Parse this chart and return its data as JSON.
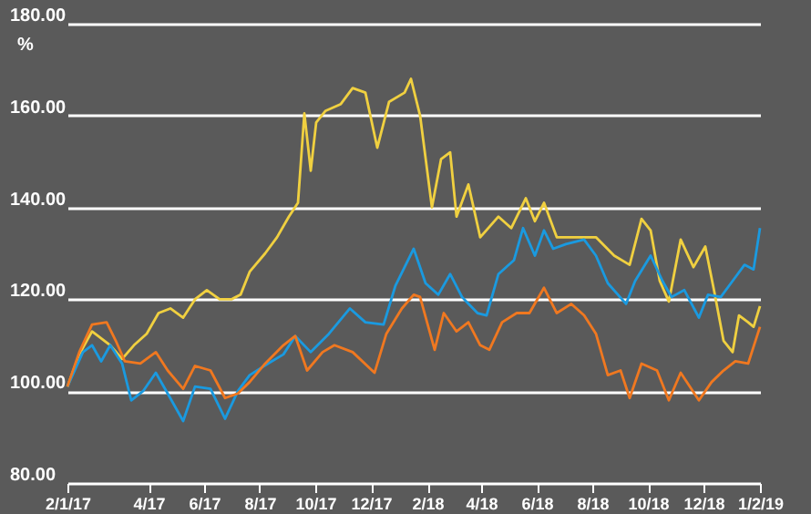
{
  "chart_data": {
    "type": "line",
    "ylabel": "%",
    "xlim": [
      "2017-01-02",
      "2019-02-01"
    ],
    "xticks": [
      {
        "value": "2017-01-02",
        "label": "2/1/17"
      },
      {
        "value": "2017-04-01",
        "label": "4/17"
      },
      {
        "value": "2017-06-01",
        "label": "6/17"
      },
      {
        "value": "2017-08-01",
        "label": "8/17"
      },
      {
        "value": "2017-10-01",
        "label": "10/17"
      },
      {
        "value": "2017-12-01",
        "label": "12/17"
      },
      {
        "value": "2018-02-01",
        "label": "2/18"
      },
      {
        "value": "2018-04-01",
        "label": "4/18"
      },
      {
        "value": "2018-06-01",
        "label": "6/18"
      },
      {
        "value": "2018-08-01",
        "label": "8/18"
      },
      {
        "value": "2018-10-01",
        "label": "10/18"
      },
      {
        "value": "2018-12-01",
        "label": "12/18"
      },
      {
        "value": "2019-02-01",
        "label": "1/2/19"
      }
    ],
    "ylim": [
      80,
      180
    ],
    "yticks": [
      {
        "value": 80,
        "label": "80.00"
      },
      {
        "value": 100,
        "label": "100.00"
      },
      {
        "value": 120,
        "label": "120.00"
      },
      {
        "value": 140,
        "label": "140.00"
      },
      {
        "value": 160,
        "label": "160.00"
      },
      {
        "value": 180,
        "label": "180.00"
      }
    ],
    "grid": "y",
    "marker": "none",
    "line_style": "solid",
    "series": [
      {
        "color": "#f0d040",
        "x": [
          "2017-01-02",
          "2017-01-15",
          "2017-01-29",
          "2017-02-18",
          "2017-03-03",
          "2017-03-16",
          "2017-03-30",
          "2017-04-12",
          "2017-04-25",
          "2017-05-09",
          "2017-05-22",
          "2017-06-04",
          "2017-06-18",
          "2017-07-01",
          "2017-07-11",
          "2017-07-21",
          "2017-08-07",
          "2017-08-20",
          "2017-09-02",
          "2017-09-12",
          "2017-09-19",
          "2017-09-26",
          "2017-10-02",
          "2017-10-12",
          "2017-10-29",
          "2017-11-11",
          "2017-11-25",
          "2017-12-08",
          "2017-12-21",
          "2018-01-07",
          "2018-01-14",
          "2018-01-24",
          "2018-02-06",
          "2018-02-16",
          "2018-02-26",
          "2018-03-05",
          "2018-03-18",
          "2018-03-31",
          "2018-04-20",
          "2018-05-04",
          "2018-05-20",
          "2018-05-30",
          "2018-06-09",
          "2018-06-23",
          "2018-07-16",
          "2018-08-05",
          "2018-08-25",
          "2018-09-11",
          "2018-09-24",
          "2018-10-04",
          "2018-10-14",
          "2018-10-24",
          "2018-11-06",
          "2018-11-20",
          "2018-12-03",
          "2018-12-13",
          "2018-12-23",
          "2019-01-02",
          "2019-01-09",
          "2019-01-19",
          "2019-01-25",
          "2019-02-01"
        ],
        "values": [
          101,
          108,
          113,
          110,
          107,
          110,
          112.5,
          117,
          118,
          116,
          120,
          122,
          120,
          120,
          121,
          126,
          130,
          133.5,
          138,
          141,
          160.5,
          148,
          158.5,
          161,
          162.5,
          166,
          165,
          153,
          163,
          165,
          168,
          160,
          140,
          150.5,
          152,
          138,
          145,
          133.5,
          138,
          135.5,
          142,
          137,
          141,
          133.5,
          133.5,
          133.5,
          129.5,
          127.5,
          137.5,
          135,
          124,
          119.5,
          133,
          127,
          131.5,
          121.5,
          111,
          108.5,
          116.5,
          115,
          114,
          118.5
        ]
      },
      {
        "color": "#1a9ae0",
        "x": [
          "2017-01-02",
          "2017-01-19",
          "2017-01-29",
          "2017-02-08",
          "2017-02-18",
          "2017-03-03",
          "2017-03-13",
          "2017-03-26",
          "2017-04-09",
          "2017-04-22",
          "2017-05-09",
          "2017-05-22",
          "2017-06-08",
          "2017-06-24",
          "2017-07-08",
          "2017-07-21",
          "2017-08-10",
          "2017-08-27",
          "2017-09-09",
          "2017-09-26",
          "2017-10-16",
          "2017-11-08",
          "2017-11-25",
          "2017-12-15",
          "2017-12-28",
          "2018-01-17",
          "2018-01-30",
          "2018-02-13",
          "2018-02-26",
          "2018-03-11",
          "2018-03-28",
          "2018-04-07",
          "2018-04-20",
          "2018-05-07",
          "2018-05-17",
          "2018-05-30",
          "2018-06-09",
          "2018-06-19",
          "2018-07-03",
          "2018-07-23",
          "2018-08-05",
          "2018-08-18",
          "2018-09-07",
          "2018-09-17",
          "2018-10-04",
          "2018-10-17",
          "2018-10-27",
          "2018-11-10",
          "2018-11-26",
          "2018-12-06",
          "2018-12-20",
          "2019-01-02",
          "2019-01-15",
          "2019-01-25",
          "2019-02-01"
        ],
        "values": [
          101,
          108.5,
          110,
          106.5,
          110,
          106,
          98,
          100,
          104,
          99.5,
          93.5,
          101,
          100.5,
          94,
          100,
          103.5,
          106,
          108,
          112,
          108.5,
          112.5,
          118,
          115,
          114.5,
          123,
          131,
          123.5,
          121,
          125.5,
          120.5,
          117,
          116.5,
          125.5,
          128.5,
          135.5,
          129.5,
          135,
          131,
          132,
          133,
          129.5,
          123.5,
          119,
          124,
          129.5,
          124,
          120.5,
          122,
          116,
          121,
          120.5,
          124,
          127.5,
          126.5,
          135.5
        ]
      },
      {
        "color": "#f07820",
        "x": [
          "2017-01-02",
          "2017-01-15",
          "2017-01-29",
          "2017-02-14",
          "2017-02-24",
          "2017-03-06",
          "2017-03-23",
          "2017-04-09",
          "2017-04-22",
          "2017-05-09",
          "2017-05-22",
          "2017-06-08",
          "2017-06-24",
          "2017-07-08",
          "2017-07-21",
          "2017-08-07",
          "2017-08-27",
          "2017-09-09",
          "2017-09-22",
          "2017-10-09",
          "2017-10-22",
          "2017-11-11",
          "2017-12-05",
          "2017-12-18",
          "2018-01-04",
          "2018-01-17",
          "2018-01-24",
          "2018-02-09",
          "2018-02-19",
          "2018-03-05",
          "2018-03-18",
          "2018-03-31",
          "2018-04-10",
          "2018-04-24",
          "2018-05-10",
          "2018-05-24",
          "2018-06-09",
          "2018-06-23",
          "2018-07-09",
          "2018-07-23",
          "2018-08-05",
          "2018-08-18",
          "2018-09-01",
          "2018-09-11",
          "2018-09-24",
          "2018-10-11",
          "2018-10-24",
          "2018-11-06",
          "2018-11-26",
          "2018-12-10",
          "2018-12-23",
          "2019-01-05",
          "2019-01-19",
          "2019-02-01"
        ],
        "values": [
          101,
          108.5,
          114.5,
          115,
          111,
          106.5,
          106,
          108.5,
          104.5,
          100.5,
          105.5,
          104.5,
          98.5,
          99.5,
          102,
          106,
          110,
          112,
          104.5,
          108.5,
          110,
          108.5,
          104,
          112.5,
          118,
          121,
          120.5,
          109,
          117,
          113,
          115,
          110,
          109,
          115,
          117,
          117,
          122.5,
          117,
          119,
          116.5,
          112.5,
          103.5,
          104.5,
          98.5,
          106,
          104.5,
          98,
          104,
          98,
          102,
          104.5,
          106.5,
          106,
          114
        ]
      }
    ]
  }
}
